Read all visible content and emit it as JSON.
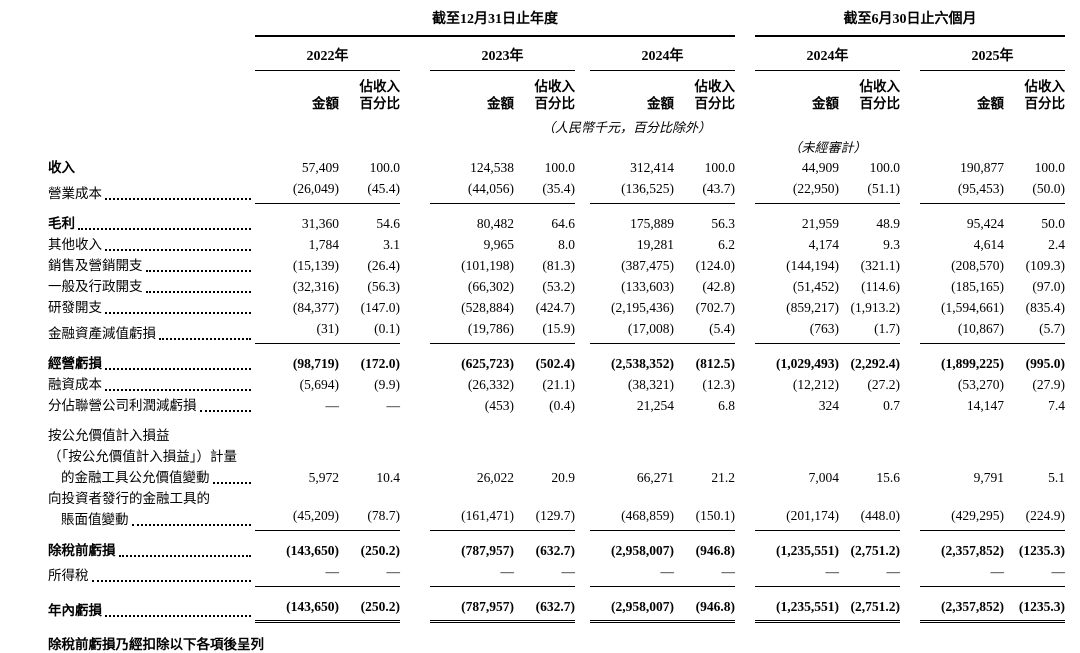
{
  "table": {
    "group_headers": [
      {
        "label": "截至12月31日止年度"
      },
      {
        "label": "截至6月30日止六個月"
      }
    ],
    "years": [
      "2022年",
      "2023年",
      "2024年",
      "2024年",
      "2025年"
    ],
    "col_headers": {
      "amount": "金額",
      "pct_line1": "佔收入",
      "pct_line2": "百分比"
    },
    "notes": {
      "currency": "（人民幣千元，百分比除外）",
      "unaudited": "（未經審計）"
    },
    "rows": [
      {
        "lines": [
          {
            "text": "收入",
            "indent": false
          }
        ],
        "dots": false,
        "label_bold": true,
        "values_bold": false,
        "sep": "none",
        "pad_top": false,
        "values": [
          "57,409",
          "100.0",
          "124,538",
          "100.0",
          "312,414",
          "100.0",
          "44,909",
          "100.0",
          "190,877",
          "100.0"
        ]
      },
      {
        "lines": [
          {
            "text": "營業成本",
            "indent": false
          }
        ],
        "dots": true,
        "label_bold": false,
        "values_bold": false,
        "sep": "single",
        "pad_top": false,
        "values": [
          "(26,049)",
          "(45.4)",
          "(44,056)",
          "(35.4)",
          "(136,525)",
          "(43.7)",
          "(22,950)",
          "(51.1)",
          "(95,453)",
          "(50.0)"
        ]
      },
      {
        "lines": [
          {
            "text": "毛利",
            "indent": false
          }
        ],
        "dots": true,
        "label_bold": true,
        "values_bold": false,
        "sep": "none",
        "pad_top": true,
        "values": [
          "31,360",
          "54.6",
          "80,482",
          "64.6",
          "175,889",
          "56.3",
          "21,959",
          "48.9",
          "95,424",
          "50.0"
        ]
      },
      {
        "lines": [
          {
            "text": "其他收入",
            "indent": false
          }
        ],
        "dots": true,
        "label_bold": false,
        "values_bold": false,
        "sep": "none",
        "pad_top": false,
        "values": [
          "1,784",
          "3.1",
          "9,965",
          "8.0",
          "19,281",
          "6.2",
          "4,174",
          "9.3",
          "4,614",
          "2.4"
        ]
      },
      {
        "lines": [
          {
            "text": "銷售及營銷開支",
            "indent": false
          }
        ],
        "dots": true,
        "label_bold": false,
        "values_bold": false,
        "sep": "none",
        "pad_top": false,
        "values": [
          "(15,139)",
          "(26.4)",
          "(101,198)",
          "(81.3)",
          "(387,475)",
          "(124.0)",
          "(144,194)",
          "(321.1)",
          "(208,570)",
          "(109.3)"
        ]
      },
      {
        "lines": [
          {
            "text": "一般及行政開支",
            "indent": false
          }
        ],
        "dots": true,
        "label_bold": false,
        "values_bold": false,
        "sep": "none",
        "pad_top": false,
        "values": [
          "(32,316)",
          "(56.3)",
          "(66,302)",
          "(53.2)",
          "(133,603)",
          "(42.8)",
          "(51,452)",
          "(114.6)",
          "(185,165)",
          "(97.0)"
        ]
      },
      {
        "lines": [
          {
            "text": "研發開支",
            "indent": false
          }
        ],
        "dots": true,
        "label_bold": false,
        "values_bold": false,
        "sep": "none",
        "pad_top": false,
        "values": [
          "(84,377)",
          "(147.0)",
          "(528,884)",
          "(424.7)",
          "(2,195,436)",
          "(702.7)",
          "(859,217)",
          "(1,913.2)",
          "(1,594,661)",
          "(835.4)"
        ]
      },
      {
        "lines": [
          {
            "text": "金融資產減值虧損",
            "indent": false
          }
        ],
        "dots": true,
        "label_bold": false,
        "values_bold": false,
        "sep": "single",
        "pad_top": false,
        "values": [
          "(31)",
          "(0.1)",
          "(19,786)",
          "(15.9)",
          "(17,008)",
          "(5.4)",
          "(763)",
          "(1.7)",
          "(10,867)",
          "(5.7)"
        ]
      },
      {
        "lines": [
          {
            "text": "經營虧損",
            "indent": false
          }
        ],
        "dots": true,
        "label_bold": true,
        "values_bold": true,
        "sep": "none",
        "pad_top": true,
        "values": [
          "(98,719)",
          "(172.0)",
          "(625,723)",
          "(502.4)",
          "(2,538,352)",
          "(812.5)",
          "(1,029,493)",
          "(2,292.4)",
          "(1,899,225)",
          "(995.0)"
        ]
      },
      {
        "lines": [
          {
            "text": "融資成本",
            "indent": false
          }
        ],
        "dots": true,
        "label_bold": false,
        "values_bold": false,
        "sep": "none",
        "pad_top": false,
        "values": [
          "(5,694)",
          "(9.9)",
          "(26,332)",
          "(21.1)",
          "(38,321)",
          "(12.3)",
          "(12,212)",
          "(27.2)",
          "(53,270)",
          "(27.9)"
        ]
      },
      {
        "lines": [
          {
            "text": "分佔聯營公司利潤減虧損",
            "indent": false
          }
        ],
        "dots": true,
        "label_bold": false,
        "values_bold": false,
        "sep": "none",
        "pad_top": false,
        "values": [
          "—",
          "—",
          "(453)",
          "(0.4)",
          "21,254",
          "6.8",
          "324",
          "0.7",
          "14,147",
          "7.4"
        ]
      },
      {
        "lines": [
          {
            "text": "按公允價值計入損益",
            "indent": false
          },
          {
            "text": "（「按公允價值計入損益」）計量",
            "indent": false
          },
          {
            "text": "的金融工具公允價值變動",
            "indent": true
          }
        ],
        "dots": true,
        "label_bold": false,
        "values_bold": false,
        "sep": "none",
        "pad_top": true,
        "values": [
          "5,972",
          "10.4",
          "26,022",
          "20.9",
          "66,271",
          "21.2",
          "7,004",
          "15.6",
          "9,791",
          "5.1"
        ]
      },
      {
        "lines": [
          {
            "text": "向投資者發行的金融工具的",
            "indent": false
          },
          {
            "text": "賬面值變動",
            "indent": true
          }
        ],
        "dots": true,
        "label_bold": false,
        "values_bold": false,
        "sep": "single",
        "pad_top": false,
        "values": [
          "(45,209)",
          "(78.7)",
          "(161,471)",
          "(129.7)",
          "(468,859)",
          "(150.1)",
          "(201,174)",
          "(448.0)",
          "(429,295)",
          "(224.9)"
        ]
      },
      {
        "lines": [
          {
            "text": "除稅前虧損",
            "indent": false
          }
        ],
        "dots": true,
        "label_bold": true,
        "values_bold": true,
        "sep": "none",
        "pad_top": true,
        "values": [
          "(143,650)",
          "(250.2)",
          "(787,957)",
          "(632.7)",
          "(2,958,007)",
          "(946.8)",
          "(1,235,551)",
          "(2,751.2)",
          "(2,357,852)",
          "(1235.3)"
        ]
      },
      {
        "lines": [
          {
            "text": "所得稅",
            "indent": false
          }
        ],
        "dots": true,
        "label_bold": false,
        "values_bold": false,
        "sep": "single",
        "pad_top": false,
        "values": [
          "—",
          "—",
          "—",
          "—",
          "—",
          "—",
          "—",
          "—",
          "—",
          "—"
        ]
      },
      {
        "lines": [
          {
            "text": "年內虧損",
            "indent": false
          }
        ],
        "dots": true,
        "label_bold": true,
        "values_bold": true,
        "sep": "double",
        "pad_top": true,
        "values": [
          "(143,650)",
          "(250.2)",
          "(787,957)",
          "(632.7)",
          "(2,958,007)",
          "(946.8)",
          "(1,235,551)",
          "(2,751.2)",
          "(2,357,852)",
          "(1235.3)"
        ]
      }
    ],
    "footer_partial": "除稅前虧損乃經扣除以下各項後呈列"
  }
}
